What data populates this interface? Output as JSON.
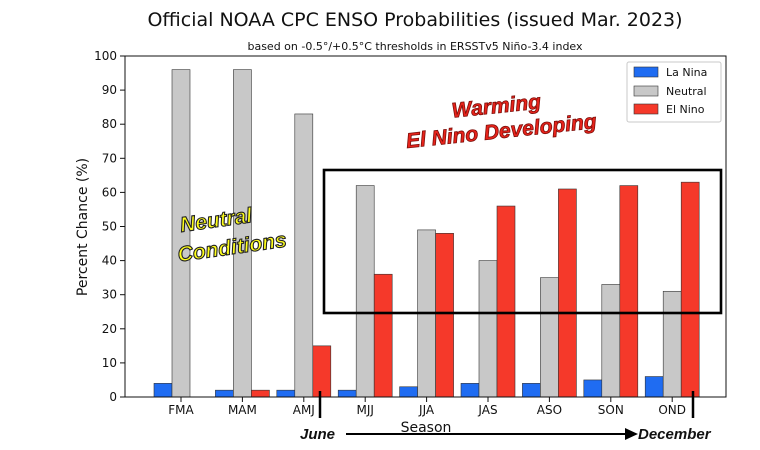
{
  "chart_data": {
    "type": "bar",
    "title": "Official NOAA CPC ENSO Probabilities (issued Mar. 2023)",
    "subtitle": "based on -0.5°/+0.5°C thresholds in ERSSTv5 Niño-3.4 index",
    "xlabel": "Season",
    "ylabel": "Percent Chance (%)",
    "ylim": [
      0,
      100
    ],
    "yticks": [
      0,
      10,
      20,
      30,
      40,
      50,
      60,
      70,
      80,
      90,
      100
    ],
    "grid": false,
    "legend_position": "top-right",
    "categories": [
      "FMA",
      "MAM",
      "AMJ",
      "MJJ",
      "JJA",
      "JAS",
      "ASO",
      "SON",
      "OND"
    ],
    "series": [
      {
        "name": "La Nina",
        "color": "#1f6cf2",
        "values": [
          4,
          2,
          2,
          2,
          3,
          4,
          4,
          5,
          6
        ]
      },
      {
        "name": "Neutral",
        "color": "#c8c8c8",
        "values": [
          96,
          96,
          83,
          62,
          49,
          40,
          35,
          33,
          31
        ]
      },
      {
        "name": "El Nino",
        "color": "#f5392a",
        "values": [
          0,
          2,
          15,
          36,
          48,
          56,
          61,
          62,
          63
        ]
      }
    ],
    "annotations": {
      "warming_line1": "Warming",
      "warming_line2": "El Nino Developing",
      "neutral_line1": "Neutral",
      "neutral_line2": "Conditions",
      "start_label": "June",
      "end_label": "December"
    }
  }
}
